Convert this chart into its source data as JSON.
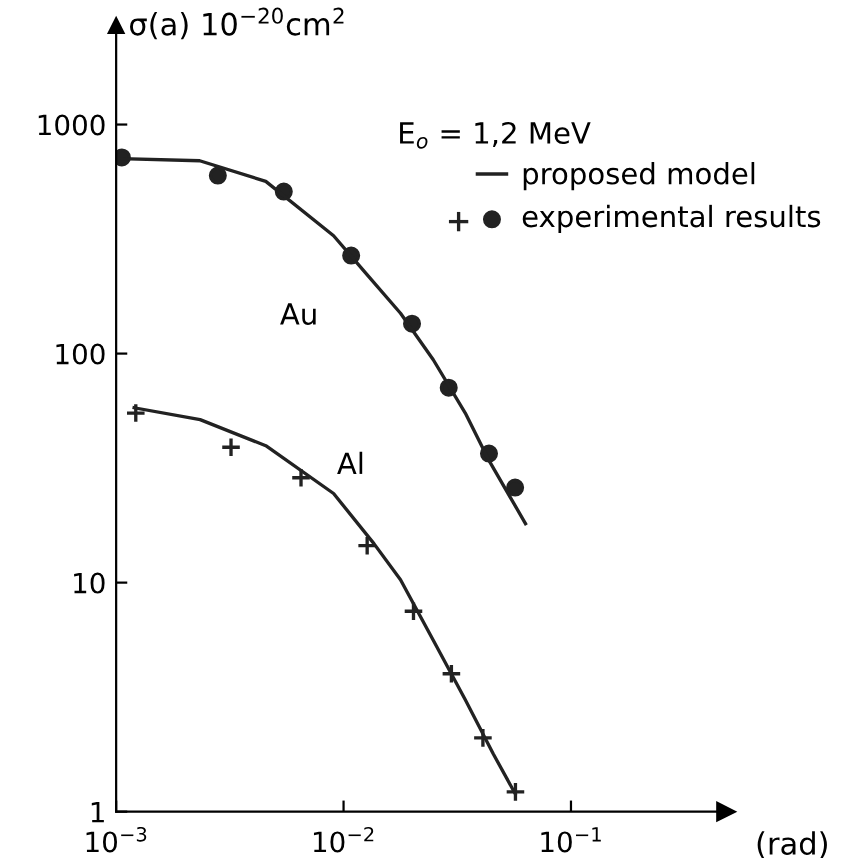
{
  "chart_data": {
    "type": "line",
    "ylabel": "σ(a) 10$^{−20}$cm$^{2}$",
    "xlabel": "(rad)",
    "log": "xy",
    "xlim": [
      0.001,
      0.48
    ],
    "ylim": [
      1,
      2700
    ],
    "xticks": [
      {
        "value": 0.001,
        "label": "10$^{−3}$"
      },
      {
        "value": 0.01,
        "label": "10$^{−2}$"
      },
      {
        "value": 0.1,
        "label": "10$^{−1}$"
      }
    ],
    "yticks": [
      1,
      10,
      100,
      1000
    ],
    "grid": false,
    "legend": "top right",
    "annotations": [
      "E$_{o}$ = 1,2 MeV",
      "Au",
      "Al"
    ],
    "series": [
      {
        "name": "proposed model",
        "color": "#222222",
        "marker": "none",
        "x": [
          0.00106,
          0.00233,
          0.00455,
          0.00904,
          0.0126,
          0.0178,
          0.0248,
          0.0343,
          0.0437,
          0.0631
        ],
        "values": [
          710,
          695,
          565,
          327,
          223,
          150,
          94,
          55,
          34,
          18.1
        ]
      },
      {
        "name": "experimental results",
        "type": "scatter",
        "color": "#222222",
        "marker": "circle",
        "x": [
          0.00106,
          0.0028,
          0.00546,
          0.0108,
          0.02,
          0.029,
          0.0436,
          0.0568
        ],
        "values": [
          718,
          599,
          510,
          268,
          135,
          71,
          36.6,
          26
        ]
      },
      {
        "color": "#222222",
        "marker": "none",
        "x": [
          0.0012,
          0.00234,
          0.00455,
          0.00904,
          0.0136,
          0.0178,
          0.0248,
          0.0343,
          0.0455,
          0.0568
        ],
        "values": [
          58,
          51.5,
          39.6,
          24.5,
          14.8,
          10.3,
          5.6,
          3.08,
          1.79,
          1.2
        ]
      },
      {
        "type": "scatter",
        "color": "#222222",
        "marker": "cross",
        "x": [
          0.00122,
          0.0032,
          0.0065,
          0.0127,
          0.0203,
          0.0298,
          0.041,
          0.057
        ],
        "values": [
          55,
          39,
          28.7,
          14.5,
          7.5,
          4.0,
          2.1,
          1.22
        ]
      }
    ]
  }
}
